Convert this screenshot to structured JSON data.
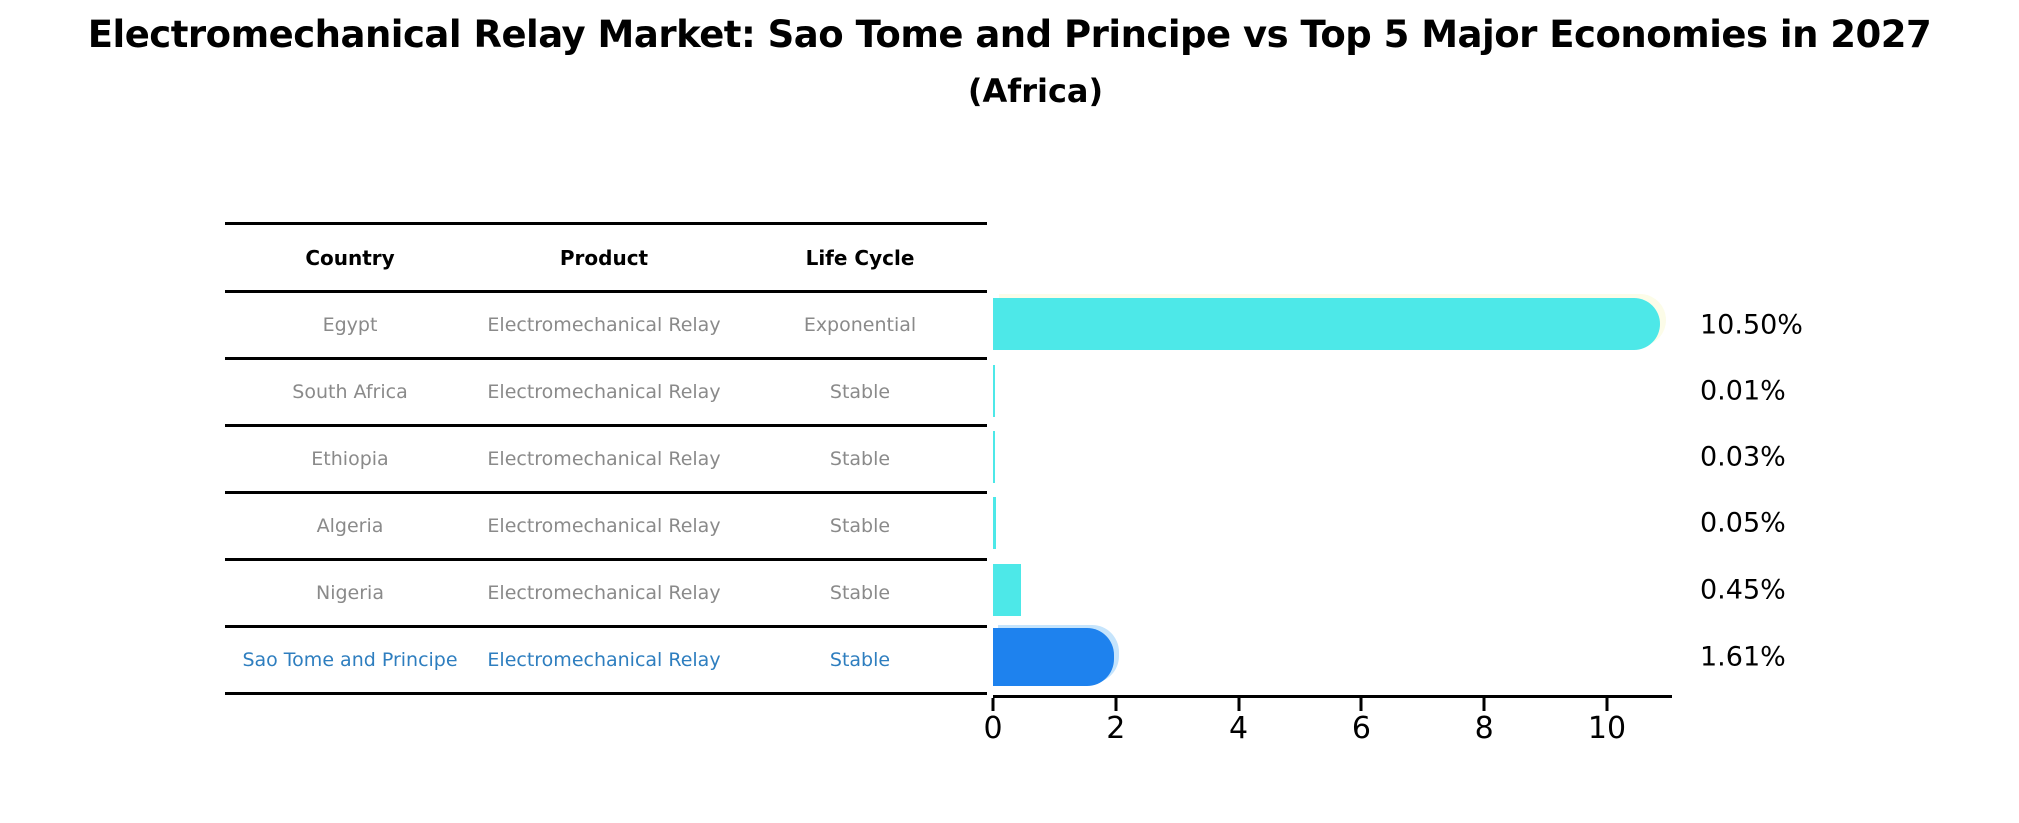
{
  "title": "Electromechanical Relay Market: Sao Tome and Principe vs Top 5 Major Economies in 2027",
  "subtitle": "(Africa)",
  "table": {
    "headers": [
      "Country",
      "Product",
      "Life Cycle"
    ],
    "rows": [
      {
        "country": "Egypt",
        "product": "Electromechanical Relay",
        "life_cycle": "Exponential",
        "value_label": "10.50%",
        "highlight": false
      },
      {
        "country": "South Africa",
        "product": "Electromechanical Relay",
        "life_cycle": "Stable",
        "value_label": "0.01%",
        "highlight": false
      },
      {
        "country": "Ethiopia",
        "product": "Electromechanical Relay",
        "life_cycle": "Stable",
        "value_label": "0.03%",
        "highlight": false
      },
      {
        "country": "Algeria",
        "product": "Electromechanical Relay",
        "life_cycle": "Stable",
        "value_label": "0.05%",
        "highlight": false
      },
      {
        "country": "Nigeria",
        "product": "Electromechanical Relay",
        "life_cycle": "Stable",
        "value_label": "0.45%",
        "highlight": false
      },
      {
        "country": "Sao Tome and Principe",
        "product": "Electromechanical Relay",
        "life_cycle": "Stable",
        "value_label": "1.61%",
        "highlight": true
      }
    ]
  },
  "chart_data": {
    "type": "bar",
    "orientation": "horizontal",
    "title": "Electromechanical Relay Market: Sao Tome and Principe vs Top 5 Major Economies in 2027 (Africa)",
    "categories": [
      "Egypt",
      "South Africa",
      "Ethiopia",
      "Algeria",
      "Nigeria",
      "Sao Tome and Principe"
    ],
    "values": [
      10.5,
      0.01,
      0.03,
      0.05,
      0.45,
      1.61
    ],
    "value_labels": [
      "10.50%",
      "0.01%",
      "0.03%",
      "0.05%",
      "0.45%",
      "1.61%"
    ],
    "xlabel": "",
    "ylabel": "",
    "xlim": [
      0,
      11.05
    ],
    "xticks": [
      0,
      2,
      4,
      6,
      8,
      10
    ],
    "grid": false,
    "legend": "none",
    "highlight_index": 5,
    "colors": {
      "default_bar": "#4DE8E8",
      "highlight_bar": "#1E82EE",
      "highlight_text": "#2E7EBF",
      "row_text": "#8A8A8A",
      "header_text": "#000000",
      "axis": "#000000"
    }
  }
}
